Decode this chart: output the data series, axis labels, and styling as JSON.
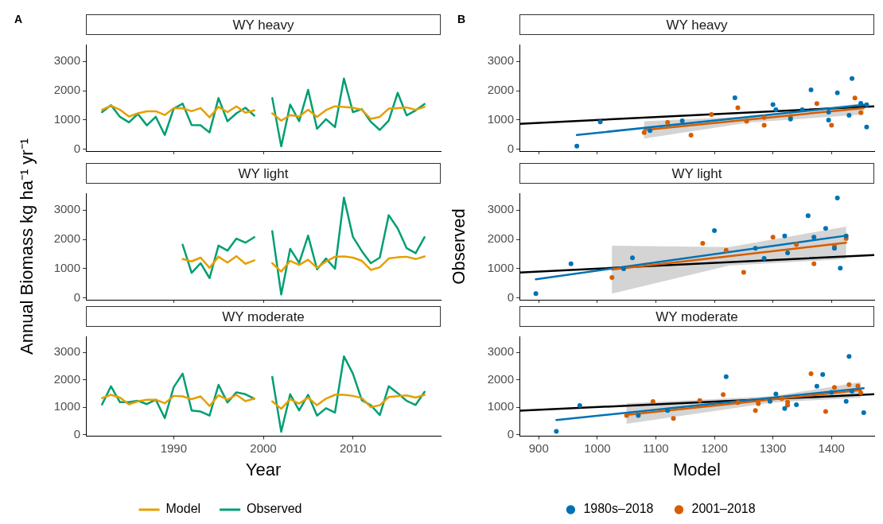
{
  "chart_data": [
    {
      "type": "line",
      "title": "WY heavy",
      "annotations": [
        "A"
      ],
      "marker": "none",
      "tick_labels": "y",
      "x": [
        1982,
        1983,
        1984,
        1985,
        1986,
        1987,
        1988,
        1989,
        1990,
        1991,
        1992,
        1993,
        1994,
        1995,
        1996,
        1997,
        1998,
        1999,
        null,
        2001,
        2002,
        2003,
        2004,
        2005,
        2006,
        2007,
        2008,
        2009,
        2010,
        2011,
        2012,
        2013,
        2014,
        2015,
        2016,
        2017,
        2018
      ],
      "xlim": [
        1980.2,
        2019.8
      ],
      "xticks": [
        1990,
        2000,
        2010
      ],
      "ylim": [
        -60,
        3580
      ],
      "yticks": [
        0,
        1000,
        2000,
        3000
      ],
      "series": [
        {
          "color": "#e69f00",
          "values": [
            1350,
            1490,
            1350,
            1120,
            1230,
            1300,
            1300,
            1170,
            1410,
            1400,
            1300,
            1410,
            1090,
            1450,
            1270,
            1470,
            1250,
            1330,
            null,
            1230,
            980,
            1170,
            1120,
            1350,
            1110,
            1340,
            1470,
            1450,
            1420,
            1350,
            1040,
            1110,
            1390,
            1410,
            1430,
            1350,
            1450
          ]
        },
        {
          "color": "#009e73",
          "values": [
            1270,
            1510,
            1110,
            920,
            1210,
            820,
            1110,
            490,
            1390,
            1560,
            830,
            820,
            580,
            1750,
            960,
            1230,
            1420,
            1150,
            null,
            1750,
            100,
            1530,
            960,
            2030,
            700,
            1030,
            760,
            2420,
            1270,
            1370,
            940,
            660,
            980,
            1930,
            1160,
            1330,
            1550
          ]
        }
      ]
    },
    {
      "type": "scatter",
      "title": "WY heavy",
      "annotations": [
        "B"
      ],
      "marker": "circle",
      "tick_labels": "y",
      "xlim": [
        867,
        1473
      ],
      "xticks": [
        900,
        1000,
        1100,
        1200,
        1300,
        1400
      ],
      "ylim": [
        -60,
        3580
      ],
      "yticks": [
        0,
        1000,
        2000,
        3000
      ],
      "series": [
        {
          "color": "#0072b2",
          "x": [
            965,
            1005,
            1090,
            1145,
            1235,
            1300,
            1305,
            1330,
            1350,
            1365,
            1395,
            1395,
            1410,
            1430,
            1435,
            1450,
            1460,
            1460
          ],
          "values": [
            110,
            940,
            640,
            970,
            1760,
            1530,
            1350,
            1030,
            1350,
            2030,
            1270,
            1000,
            1930,
            1160,
            2420,
            1570,
            1520,
            760
          ]
        },
        {
          "color": "#d55e00",
          "x": [
            1080,
            1120,
            1160,
            1195,
            1240,
            1255,
            1285,
            1285,
            1330,
            1375,
            1400,
            1440,
            1450
          ],
          "values": [
            570,
            920,
            480,
            1190,
            1420,
            960,
            820,
            1090,
            1120,
            1560,
            820,
            1750,
            1250
          ]
        },
        {
          "type": "line",
          "marker": "none",
          "color": "#d55e00",
          "x": [
            1080,
            1260,
            1455
          ],
          "values": [
            660,
            1020,
            1410
          ],
          "lower": [
            370,
            920,
            1190
          ],
          "upper": [
            960,
            1120,
            1580
          ]
        },
        {
          "type": "line",
          "marker": "none",
          "color": "#0072b2",
          "x": [
            965,
            1460
          ],
          "values": [
            490,
            1530
          ]
        },
        {
          "type": "line",
          "marker": "none",
          "color": "#000000",
          "x": [
            867,
            1473
          ],
          "values": [
            870,
            1470
          ]
        }
      ]
    },
    {
      "type": "line",
      "title": "WY light",
      "ylabel": "Annual Biomass kg ha⁻¹ yr⁻¹",
      "marker": "none",
      "tick_labels": "y",
      "xlim": [
        1980.2,
        2019.8
      ],
      "xticks": [
        1990,
        2000,
        2010
      ],
      "ylim": [
        -60,
        3580
      ],
      "yticks": [
        0,
        1000,
        2000,
        3000
      ],
      "series": [
        {
          "color": "#e69f00",
          "x": [
            1991,
            1992,
            1993,
            1994,
            1995,
            1996,
            1997,
            1998,
            1999,
            null,
            2001,
            2002,
            2003,
            2004,
            2005,
            2006,
            2007,
            2008,
            2009,
            2010,
            2011,
            2012,
            2013,
            2014,
            2015,
            2016,
            2017,
            2018
          ],
          "values": [
            1330,
            1250,
            1380,
            1030,
            1410,
            1210,
            1430,
            1170,
            1290,
            null,
            1190,
            900,
            1270,
            1130,
            1310,
            1030,
            1250,
            1410,
            1420,
            1380,
            1270,
            960,
            1050,
            1350,
            1390,
            1410,
            1330,
            1420
          ]
        },
        {
          "color": "#009e73",
          "x": [
            1991,
            1992,
            1993,
            1994,
            1995,
            1996,
            1997,
            1998,
            1999,
            null,
            2001,
            2002,
            2003,
            2004,
            2005,
            2006,
            2007,
            2008,
            2009,
            2010,
            2011,
            2012,
            2013,
            2014,
            2015,
            2016,
            2017,
            2018
          ],
          "values": [
            1820,
            860,
            1190,
            680,
            1790,
            1620,
            2030,
            1890,
            2080,
            null,
            2280,
            120,
            1680,
            1200,
            2130,
            980,
            1350,
            1000,
            3430,
            2090,
            1600,
            1190,
            1380,
            2830,
            2380,
            1700,
            1530,
            2080
          ]
        }
      ]
    },
    {
      "type": "scatter",
      "title": "WY light",
      "ylabel": "Observed",
      "marker": "circle",
      "tick_labels": "y",
      "xlim": [
        867,
        1473
      ],
      "xticks": [
        900,
        1000,
        1100,
        1200,
        1300,
        1400
      ],
      "ylim": [
        -60,
        3580
      ],
      "yticks": [
        0,
        1000,
        2000,
        3000
      ],
      "series": [
        {
          "color": "#0072b2",
          "x": [
            895,
            955,
            1045,
            1060,
            1200,
            1270,
            1285,
            1320,
            1325,
            1360,
            1370,
            1390,
            1405,
            1410,
            1415,
            1425
          ],
          "values": [
            150,
            1170,
            1000,
            1370,
            2300,
            1700,
            1350,
            2120,
            1540,
            2810,
            2080,
            2380,
            1700,
            3420,
            1020,
            2120
          ]
        },
        {
          "color": "#d55e00",
          "x": [
            1025,
            1180,
            1220,
            1250,
            1300,
            1340,
            1370,
            1405,
            1425
          ],
          "values": [
            700,
            1870,
            1630,
            880,
            2080,
            1830,
            1170,
            1780,
            2030
          ]
        },
        {
          "type": "line",
          "marker": "none",
          "color": "#d55e00",
          "x": [
            1025,
            1225,
            1425
          ],
          "values": [
            970,
            1430,
            1890
          ],
          "lower": [
            150,
            1110,
            1330
          ],
          "upper": [
            1790,
            1740,
            2440
          ]
        },
        {
          "type": "line",
          "marker": "none",
          "color": "#0072b2",
          "x": [
            895,
            1425
          ],
          "values": [
            640,
            2130
          ]
        },
        {
          "type": "line",
          "marker": "none",
          "color": "#000000",
          "x": [
            867,
            1473
          ],
          "values": [
            870,
            1470
          ]
        }
      ]
    },
    {
      "type": "line",
      "title": "WY moderate",
      "xlabel": "Year",
      "marker": "none",
      "legend": "bottom",
      "x": [
        1982,
        1983,
        1984,
        1985,
        1986,
        1987,
        1988,
        1989,
        1990,
        1991,
        1992,
        1993,
        1994,
        1995,
        1996,
        1997,
        1998,
        1999,
        null,
        2001,
        2002,
        2003,
        2004,
        2005,
        2006,
        2007,
        2008,
        2009,
        2010,
        2011,
        2012,
        2013,
        2014,
        2015,
        2016,
        2017,
        2018
      ],
      "xlim": [
        1980.2,
        2019.8
      ],
      "xticks": [
        1990,
        2000,
        2010
      ],
      "ylim": [
        -60,
        3580
      ],
      "yticks": [
        0,
        1000,
        2000,
        3000
      ],
      "series": [
        {
          "name": "Model",
          "color": "#e69f00",
          "values": [
            1330,
            1450,
            1350,
            1100,
            1210,
            1270,
            1270,
            1140,
            1410,
            1390,
            1290,
            1390,
            1040,
            1430,
            1270,
            1450,
            1220,
            1310,
            null,
            1210,
            940,
            1290,
            1130,
            1350,
            1070,
            1310,
            1450,
            1450,
            1410,
            1330,
            1000,
            1070,
            1370,
            1400,
            1430,
            1350,
            1450
          ]
        },
        {
          "name": "Observed",
          "color": "#009e73",
          "values": [
            1100,
            1760,
            1180,
            1180,
            1230,
            1110,
            1270,
            600,
            1730,
            2220,
            880,
            840,
            690,
            1810,
            1170,
            1540,
            1470,
            1310,
            null,
            2100,
            100,
            1470,
            880,
            1450,
            690,
            960,
            800,
            2850,
            2220,
            1250,
            1070,
            710,
            1760,
            1510,
            1230,
            1080,
            1560
          ]
        }
      ]
    },
    {
      "type": "scatter",
      "title": "WY moderate",
      "xlabel": "Model",
      "marker": "circle",
      "legend": "bottom",
      "xlim": [
        867,
        1473
      ],
      "xticks": [
        900,
        1000,
        1100,
        1200,
        1300,
        1400
      ],
      "ylim": [
        -60,
        3580
      ],
      "yticks": [
        0,
        1000,
        2000,
        3000
      ],
      "series": [
        {
          "name": "1980s–2018",
          "color": "#0072b2",
          "x": [
            930,
            970,
            1070,
            1120,
            1220,
            1295,
            1305,
            1320,
            1340,
            1375,
            1385,
            1400,
            1425,
            1430,
            1435,
            1455
          ],
          "values": [
            120,
            1060,
            700,
            880,
            2110,
            1210,
            1480,
            950,
            1090,
            1760,
            2190,
            1540,
            1210,
            2850,
            1580,
            800
          ]
        },
        {
          "name": "2001–2018",
          "color": "#d55e00",
          "x": [
            1050,
            1095,
            1130,
            1175,
            1215,
            1240,
            1270,
            1275,
            1315,
            1325,
            1325,
            1365,
            1390,
            1405,
            1430,
            1445,
            1450
          ],
          "values": [
            700,
            1200,
            590,
            1240,
            1460,
            1170,
            880,
            1130,
            1310,
            1180,
            1070,
            2220,
            840,
            1720,
            1820,
            1770,
            1520
          ]
        },
        {
          "type": "line",
          "marker": "none",
          "color": "#d55e00",
          "x": [
            1050,
            1300,
            1450
          ],
          "values": [
            720,
            1280,
            1620
          ],
          "lower": [
            390,
            1170,
            1350
          ],
          "upper": [
            1140,
            1400,
            1910
          ]
        },
        {
          "type": "line",
          "marker": "none",
          "color": "#0072b2",
          "x": [
            930,
            1455
          ],
          "values": [
            530,
            1690
          ]
        },
        {
          "type": "line",
          "marker": "none",
          "color": "#000000",
          "x": [
            867,
            1473
          ],
          "values": [
            870,
            1470
          ]
        }
      ]
    }
  ]
}
